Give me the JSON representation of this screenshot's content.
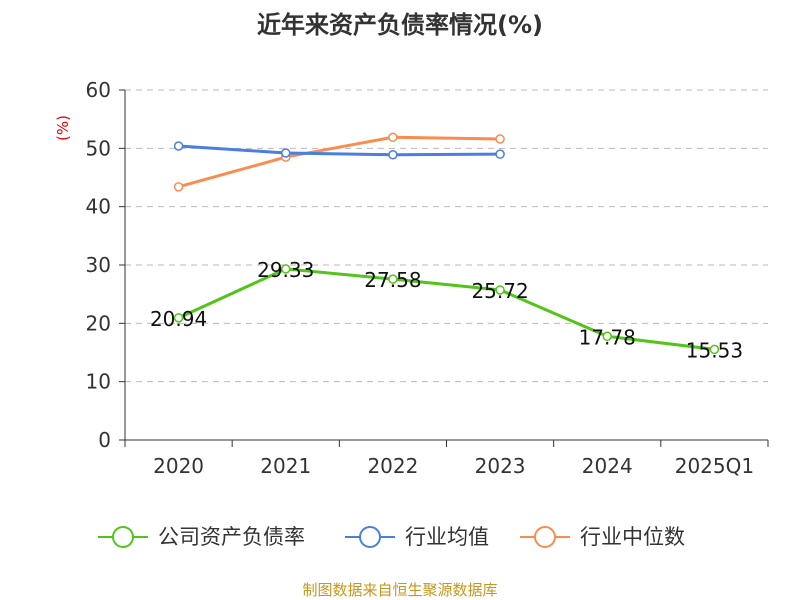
{
  "chart_data": {
    "type": "line",
    "title": "近年来资产负债率情况(%)",
    "ylabel": "(%)",
    "ylim": [
      0,
      60
    ],
    "yticks": [
      0,
      10,
      20,
      30,
      40,
      50,
      60
    ],
    "grid": true,
    "legend_placement": "bottom",
    "categories": [
      "2020",
      "2021",
      "2022",
      "2023",
      "2024",
      "2025Q1"
    ],
    "series": [
      {
        "name": "公司资产负债率",
        "color": "#52c41a",
        "values": [
          20.94,
          29.33,
          27.58,
          25.72,
          17.78,
          15.53
        ],
        "labels": true
      },
      {
        "name": "行业均值",
        "color": "#4a7fe0",
        "values": [
          50.4,
          49.2,
          48.9,
          49.0,
          null,
          null
        ],
        "labels": false
      },
      {
        "name": "行业中位数",
        "color": "#fa8c50",
        "values": [
          43.4,
          48.5,
          51.9,
          51.6,
          null,
          null
        ],
        "labels": false
      }
    ]
  },
  "source": "制图数据来自恒生聚源数据库"
}
